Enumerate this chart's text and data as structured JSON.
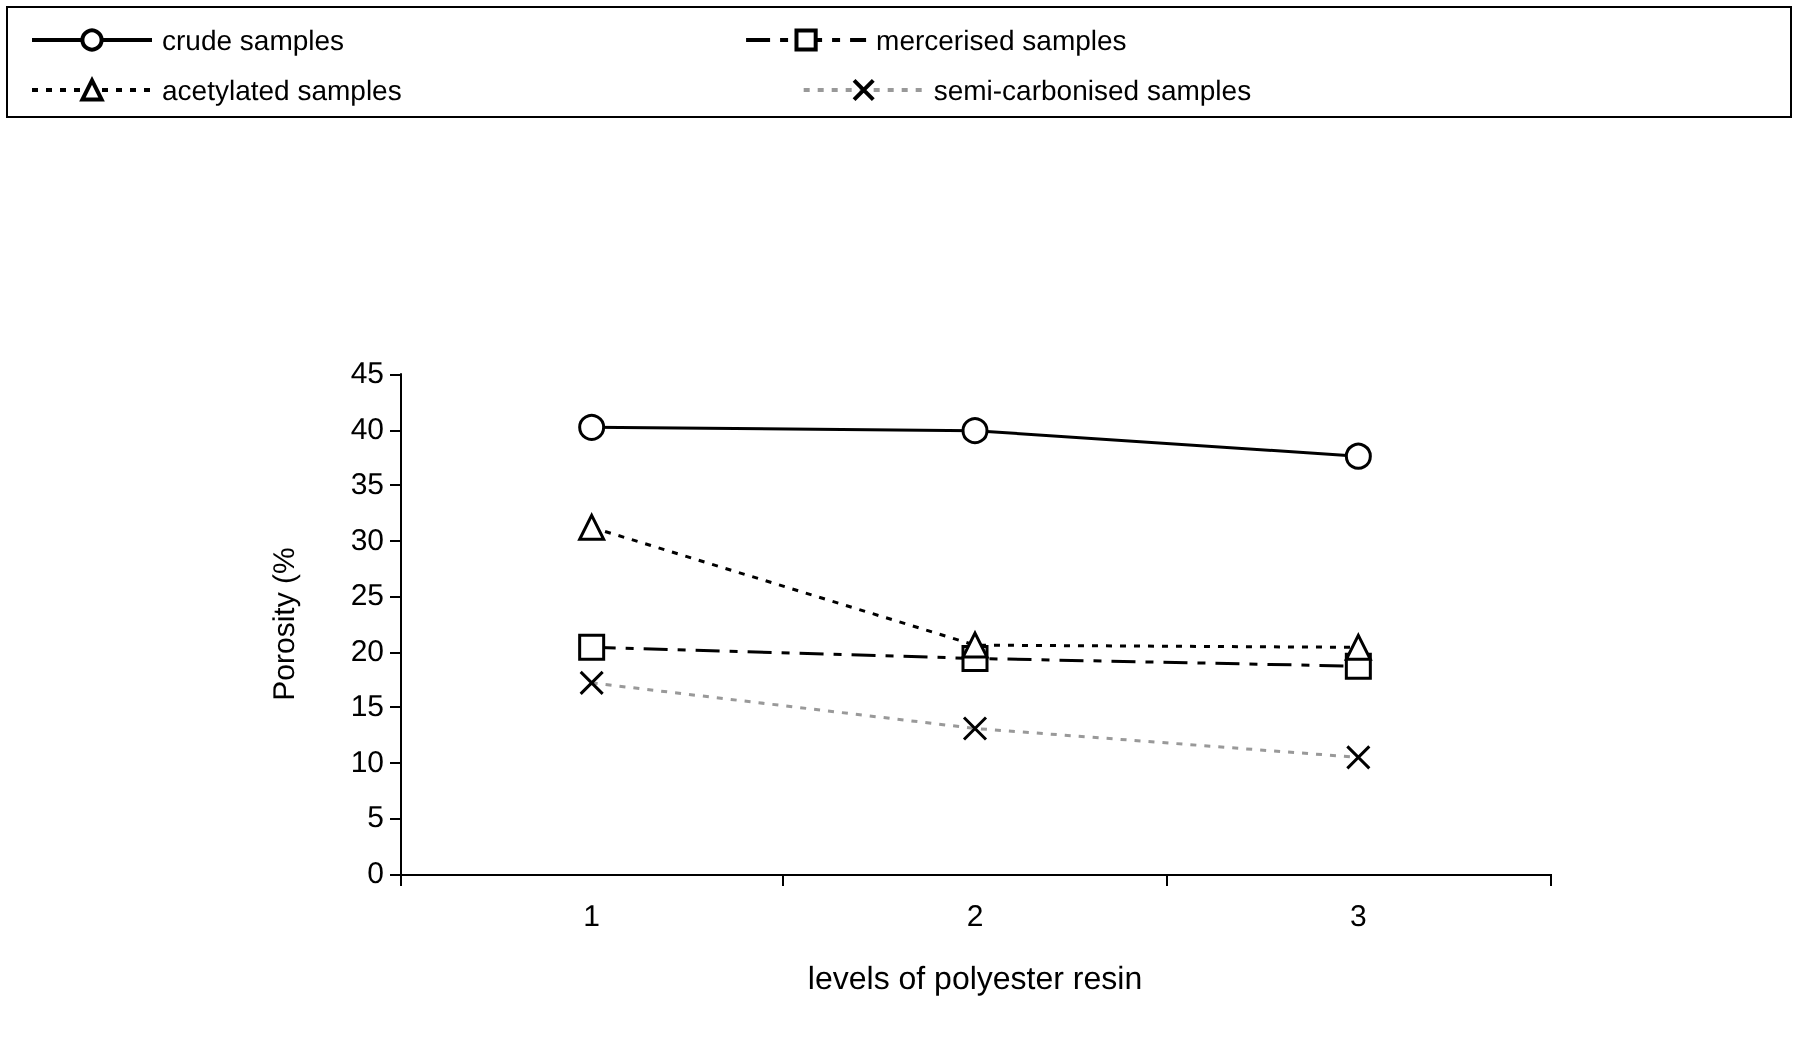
{
  "chart_data": {
    "type": "line",
    "xlabel": "levels of polyester resin",
    "ylabel": "Porosity (%",
    "categories": [
      "1",
      "2",
      "3"
    ],
    "series": [
      {
        "name": "crude samples",
        "color": "#000000",
        "marker": "circle",
        "line_style": "solid",
        "values": [
          40.2,
          39.9,
          37.6
        ]
      },
      {
        "name": "mercerised samples",
        "color": "#000000",
        "marker": "square",
        "line_style": "dashed",
        "values": [
          20.4,
          19.4,
          18.7
        ]
      },
      {
        "name": "acetylated samples",
        "color": "#000000",
        "marker": "triangle",
        "line_style": "dotted",
        "values": [
          31.2,
          20.6,
          20.4
        ]
      },
      {
        "name": "semi-carbonised samples",
        "color": "#999999",
        "marker": "cross",
        "line_style": "dotted",
        "values": [
          17.2,
          13.1,
          10.5
        ]
      }
    ],
    "ylim": [
      0,
      45
    ],
    "yticks": [
      0,
      5,
      10,
      15,
      20,
      25,
      30,
      35,
      40,
      45
    ],
    "grid": false,
    "legend": "top"
  }
}
